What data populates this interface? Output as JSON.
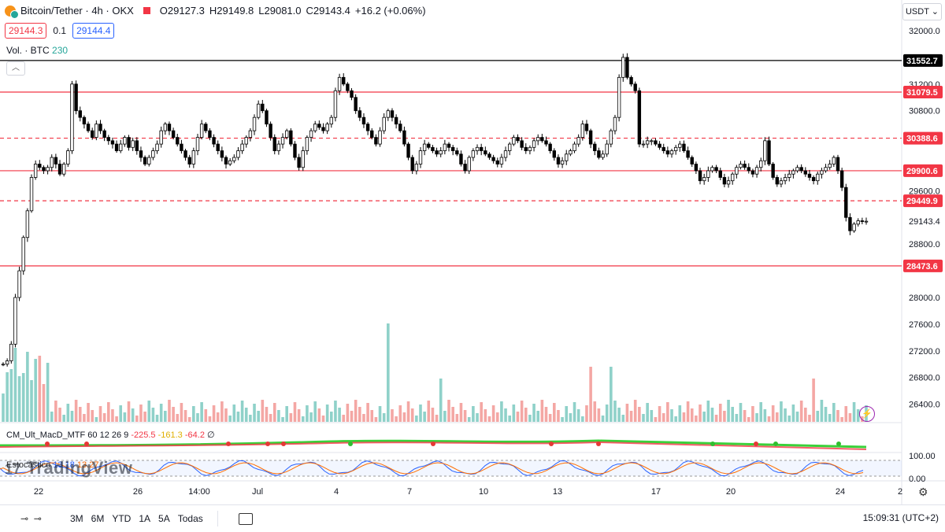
{
  "header": {
    "symbol": "Bitcoin/Tether · 4h · OKX",
    "open": "O29127.3",
    "high": "H29149.8",
    "low": "L29081.0",
    "close": "C29143.4",
    "change": "+16.2 (+0.06%)"
  },
  "order": {
    "sell": "29144.3",
    "spread": "0.1",
    "buy": "29144.4"
  },
  "volume": {
    "label": "Vol. · BTC",
    "value": "230"
  },
  "currency_button": "USDT ⌄",
  "price_axis": {
    "ticks": [
      "32000.0",
      "31200.0",
      "30800.0",
      "29600.0",
      "28800.0",
      "28000.0",
      "27600.0",
      "27200.0",
      "26800.0",
      "26400.0"
    ],
    "levels": [
      {
        "value": "31552.7",
        "color": "#000000",
        "style": "solid"
      },
      {
        "value": "31079.5",
        "color": "#f23645",
        "style": "solid"
      },
      {
        "value": "30388.6",
        "color": "#f23645",
        "style": "dashed"
      },
      {
        "value": "29900.6",
        "color": "#f23645",
        "style": "solid"
      },
      {
        "value": "29449.9",
        "color": "#f23645",
        "style": "dashed"
      },
      {
        "value": "28473.6",
        "color": "#f23645",
        "style": "solid"
      }
    ],
    "last_price": "29143.4"
  },
  "time_axis": [
    "22",
    "26",
    "14:00",
    "Jul",
    "4",
    "7",
    "10",
    "13",
    "17",
    "20",
    "24",
    "2"
  ],
  "macd": {
    "name": "CM_Ult_MacD_MTF 60 12 26 9",
    "v1": "-225.5",
    "v2": "-161.3",
    "v3": "-64.2",
    "v4": "∅"
  },
  "stoch": {
    "name": "Estocástico",
    "v1": "13.18",
    "v2": "13.27",
    "ticks": [
      "100.00",
      "0.00"
    ]
  },
  "watermark": "TradingView",
  "toolbar": {
    "ranges": [
      "3M",
      "6M",
      "YTD",
      "1A",
      "5A",
      "Todas"
    ],
    "time": "15:09:31 (UTC+2)"
  },
  "colors": {
    "up": "#26a69a",
    "down": "#ef5350",
    "level_red": "#f23645",
    "level_black": "#000000"
  },
  "icons": {
    "collapse": "chevron-up-icon",
    "bolt": "lightning-icon",
    "settings": "gear-icon",
    "calendar": "calendar-range-icon"
  }
}
